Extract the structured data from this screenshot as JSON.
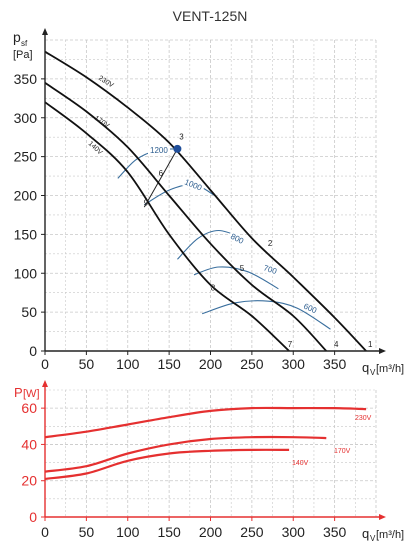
{
  "chart_data": [
    {
      "type": "line",
      "title": "VENT-125N",
      "ylabel_main": "p",
      "ylabel_sub": "sf",
      "yunit": "[Pa]",
      "xlabel_main": "q",
      "xlabel_sub": "V",
      "xunit": "[m³/h]",
      "xlim": [
        0,
        400
      ],
      "ylim": [
        0,
        400
      ],
      "xticks": [
        "0",
        "50",
        "100",
        "150",
        "200",
        "250",
        "300",
        "350"
      ],
      "yticks": [
        "0",
        "50",
        "100",
        "150",
        "200",
        "250",
        "300",
        "350"
      ],
      "grid": true,
      "series": [
        {
          "name": "230V",
          "x": [
            0,
            50,
            100,
            150,
            200,
            250,
            300,
            350,
            388
          ],
          "y": [
            385,
            352,
            313,
            268,
            207,
            145,
            95,
            43,
            0
          ]
        },
        {
          "name": "170V",
          "x": [
            0,
            50,
            100,
            150,
            200,
            250,
            300,
            340
          ],
          "y": [
            345,
            308,
            262,
            200,
            138,
            85,
            45,
            0
          ]
        },
        {
          "name": "140V",
          "x": [
            0,
            50,
            100,
            150,
            200,
            250,
            295
          ],
          "y": [
            320,
            280,
            230,
            150,
            85,
            45,
            0
          ]
        }
      ],
      "rpm_curves": [
        {
          "label": "1200",
          "x": [
            88,
            110,
            135,
            160
          ],
          "y": [
            222,
            246,
            258,
            260
          ]
        },
        {
          "label": "1000",
          "x": [
            120,
            150,
            180,
            205
          ],
          "y": [
            188,
            207,
            214,
            200
          ]
        },
        {
          "label": "800",
          "x": [
            160,
            185,
            210,
            240
          ],
          "y": [
            118,
            145,
            155,
            145
          ]
        },
        {
          "label": "700",
          "x": [
            180,
            210,
            245,
            282
          ],
          "y": [
            98,
            108,
            102,
            80
          ]
        },
        {
          "label": "600",
          "x": [
            190,
            230,
            270,
            305,
            345
          ],
          "y": [
            48,
            62,
            64,
            55,
            28
          ]
        }
      ],
      "system_line": {
        "x": [
          120,
          160
        ],
        "y": [
          185,
          260
        ]
      },
      "operating_point": {
        "x": 160,
        "y": 260
      },
      "point_labels": [
        {
          "label": "1",
          "x": 393,
          "y": 5
        },
        {
          "label": "2",
          "x": 272,
          "y": 135
        },
        {
          "label": "3",
          "x": 165,
          "y": 272
        },
        {
          "label": "4",
          "x": 352,
          "y": 5
        },
        {
          "label": "5",
          "x": 238,
          "y": 103
        },
        {
          "label": "6",
          "x": 140,
          "y": 225
        },
        {
          "label": "7",
          "x": 296,
          "y": 5
        },
        {
          "label": "8",
          "x": 203,
          "y": 78
        },
        {
          "label": "9",
          "x": 122,
          "y": 187
        }
      ]
    },
    {
      "type": "line",
      "ylabel_main": "P",
      "yunit": "[W]",
      "xlabel_main": "q",
      "xlabel_sub": "V",
      "xunit": "[m³/h]",
      "xlim": [
        0,
        400
      ],
      "ylim": [
        0,
        70
      ],
      "xticks": [
        "0",
        "50",
        "100",
        "150",
        "200",
        "250",
        "300",
        "350"
      ],
      "yticks": [
        "0",
        "20",
        "40",
        "60"
      ],
      "grid": true,
      "series": [
        {
          "name": "230V",
          "x": [
            0,
            50,
            100,
            150,
            200,
            250,
            300,
            350,
            388
          ],
          "y": [
            44,
            47,
            51,
            55,
            58.5,
            60,
            60,
            60,
            59.5
          ]
        },
        {
          "name": "170V",
          "x": [
            0,
            50,
            100,
            150,
            200,
            250,
            300,
            340
          ],
          "y": [
            25,
            28,
            35,
            40,
            43,
            44,
            44,
            43.5
          ]
        },
        {
          "name": "140V",
          "x": [
            0,
            50,
            100,
            150,
            200,
            250,
            295
          ],
          "y": [
            21,
            24,
            31,
            35,
            36.5,
            37,
            37
          ]
        }
      ]
    }
  ]
}
